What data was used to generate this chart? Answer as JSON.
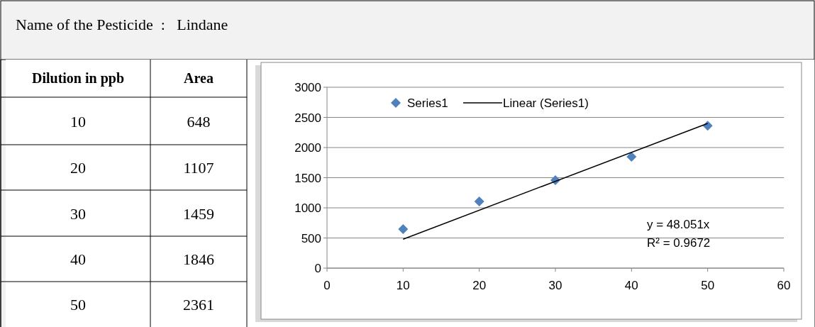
{
  "chart_data": {
    "type": "scatter",
    "title": "Name of the Pesticide  :   Lindane",
    "series": [
      {
        "name": "Series1",
        "color": "#4f81bd",
        "marker": "diamond",
        "x": [
          10,
          20,
          30,
          40,
          50
        ],
        "values": [
          648,
          1107,
          1459,
          1846,
          2361
        ]
      },
      {
        "name": "Linear (Series1)",
        "type": "line",
        "color": "#000000",
        "line_style": "solid",
        "x": [
          10,
          50
        ],
        "values": [
          480,
          2400
        ]
      }
    ],
    "xlim": [
      0,
      60
    ],
    "xticks": [
      0,
      10,
      20,
      30,
      40,
      50,
      60
    ],
    "ylim": [
      0,
      3000
    ],
    "yticks": [
      0,
      500,
      1000,
      1500,
      2000,
      2500,
      3000
    ],
    "grid": "y",
    "legend": "top",
    "annotations": [
      "Dilution in ppb",
      "Area",
      "10",
      "648",
      "20",
      "1107",
      "30",
      "1459",
      "40",
      "1846",
      "50",
      "2361",
      "y = 48.051x",
      "R² = 0.9672"
    ]
  }
}
